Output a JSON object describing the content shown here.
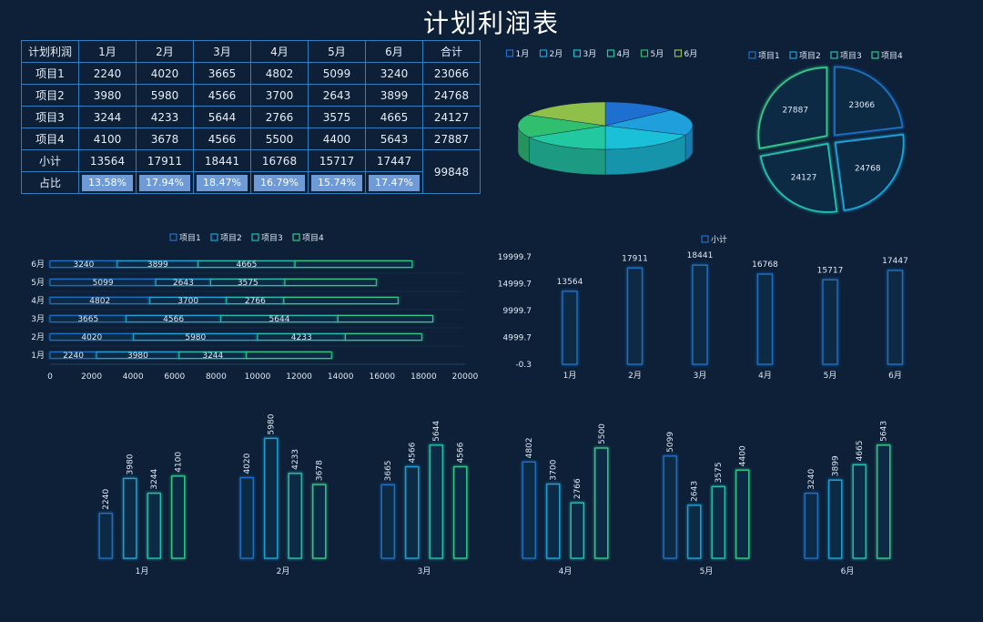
{
  "title": "计划利润表",
  "table": {
    "header": [
      "计划利润",
      "1月",
      "2月",
      "3月",
      "4月",
      "5月",
      "6月",
      "合计"
    ],
    "rows": [
      {
        "label": "项目1",
        "values": [
          "2240",
          "4020",
          "3665",
          "4802",
          "5099",
          "3240"
        ],
        "total": "23066"
      },
      {
        "label": "项目2",
        "values": [
          "3980",
          "5980",
          "4566",
          "3700",
          "2643",
          "3899"
        ],
        "total": "24768"
      },
      {
        "label": "项目3",
        "values": [
          "3244",
          "4233",
          "5644",
          "2766",
          "3575",
          "4665"
        ],
        "total": "24127"
      },
      {
        "label": "项目4",
        "values": [
          "4100",
          "3678",
          "4566",
          "5500",
          "4400",
          "5643"
        ],
        "total": "27887"
      }
    ],
    "subtotal": {
      "label": "小计",
      "values": [
        "13564",
        "17911",
        "18441",
        "16768",
        "15717",
        "17447"
      ]
    },
    "ratio": {
      "label": "占比",
      "values": [
        "13.58%",
        "17.94%",
        "18.47%",
        "16.79%",
        "15.74%",
        "17.47%"
      ]
    },
    "grand_total": "99848"
  },
  "colors": {
    "bg": "#0d2038",
    "p1": "#1f6fc4",
    "p2": "#1aa3d8",
    "p3": "#22c0b0",
    "p4": "#30c98a",
    "pie": [
      "#1f6fd0",
      "#1fa0dc",
      "#19c0d8",
      "#22c9a0",
      "#2fbf6e",
      "#8fc04a"
    ]
  },
  "chart_data": [
    {
      "type": "pie",
      "legend": [
        "1月",
        "2月",
        "3月",
        "4月",
        "5月",
        "6月"
      ],
      "values": [
        13564,
        17911,
        18441,
        16768,
        15717,
        17447
      ],
      "style": "3d"
    },
    {
      "type": "pie",
      "legend": [
        "项目1",
        "项目2",
        "项目3",
        "项目4"
      ],
      "values": [
        23066,
        24768,
        24127,
        27887
      ],
      "labels": [
        "23066",
        "24768",
        "24127",
        "27887"
      ]
    },
    {
      "type": "bar",
      "orientation": "horizontal-stacked",
      "categories": [
        "1月",
        "2月",
        "3月",
        "4月",
        "5月",
        "6月"
      ],
      "series": [
        {
          "name": "项目1",
          "values": [
            2240,
            4020,
            3665,
            4802,
            5099,
            3240
          ]
        },
        {
          "name": "项目2",
          "values": [
            3980,
            5980,
            4566,
            3700,
            2643,
            3899
          ]
        },
        {
          "name": "项目3",
          "values": [
            3244,
            4233,
            5644,
            2766,
            3575,
            4665
          ]
        },
        {
          "name": "项目4",
          "values": [
            4100,
            3678,
            4566,
            5500,
            4400,
            5643
          ]
        }
      ],
      "label_series": [
        "项目1",
        "项目2",
        "项目3"
      ],
      "xlim": [
        0,
        20000
      ],
      "xticks": [
        "0",
        "2000",
        "4000",
        "6000",
        "8000",
        "10000",
        "12000",
        "14000",
        "16000",
        "18000",
        "20000"
      ]
    },
    {
      "type": "bar",
      "categories": [
        "1月",
        "2月",
        "3月",
        "4月",
        "5月",
        "6月"
      ],
      "series": [
        {
          "name": "小计",
          "values": [
            13564,
            17911,
            18441,
            16768,
            15717,
            17447
          ]
        }
      ],
      "ylim": [
        -0.3,
        19999.7
      ],
      "yticks": [
        "19999.7",
        "14999.7",
        "9999.7",
        "4999.7",
        "-0.3"
      ]
    },
    {
      "type": "bar",
      "categories": [
        "1月",
        "2月",
        "3月",
        "4月",
        "5月",
        "6月"
      ],
      "series": [
        {
          "name": "项目1",
          "values": [
            2240,
            4020,
            3665,
            4802,
            5099,
            3240
          ]
        },
        {
          "name": "项目2",
          "values": [
            3980,
            5980,
            4566,
            3700,
            2643,
            3899
          ]
        },
        {
          "name": "项目3",
          "values": [
            3244,
            4233,
            5644,
            2766,
            3575,
            4665
          ]
        },
        {
          "name": "项目4",
          "values": [
            4100,
            3678,
            4566,
            5500,
            4400,
            5643
          ]
        }
      ],
      "ylim": [
        0,
        6000
      ]
    }
  ]
}
